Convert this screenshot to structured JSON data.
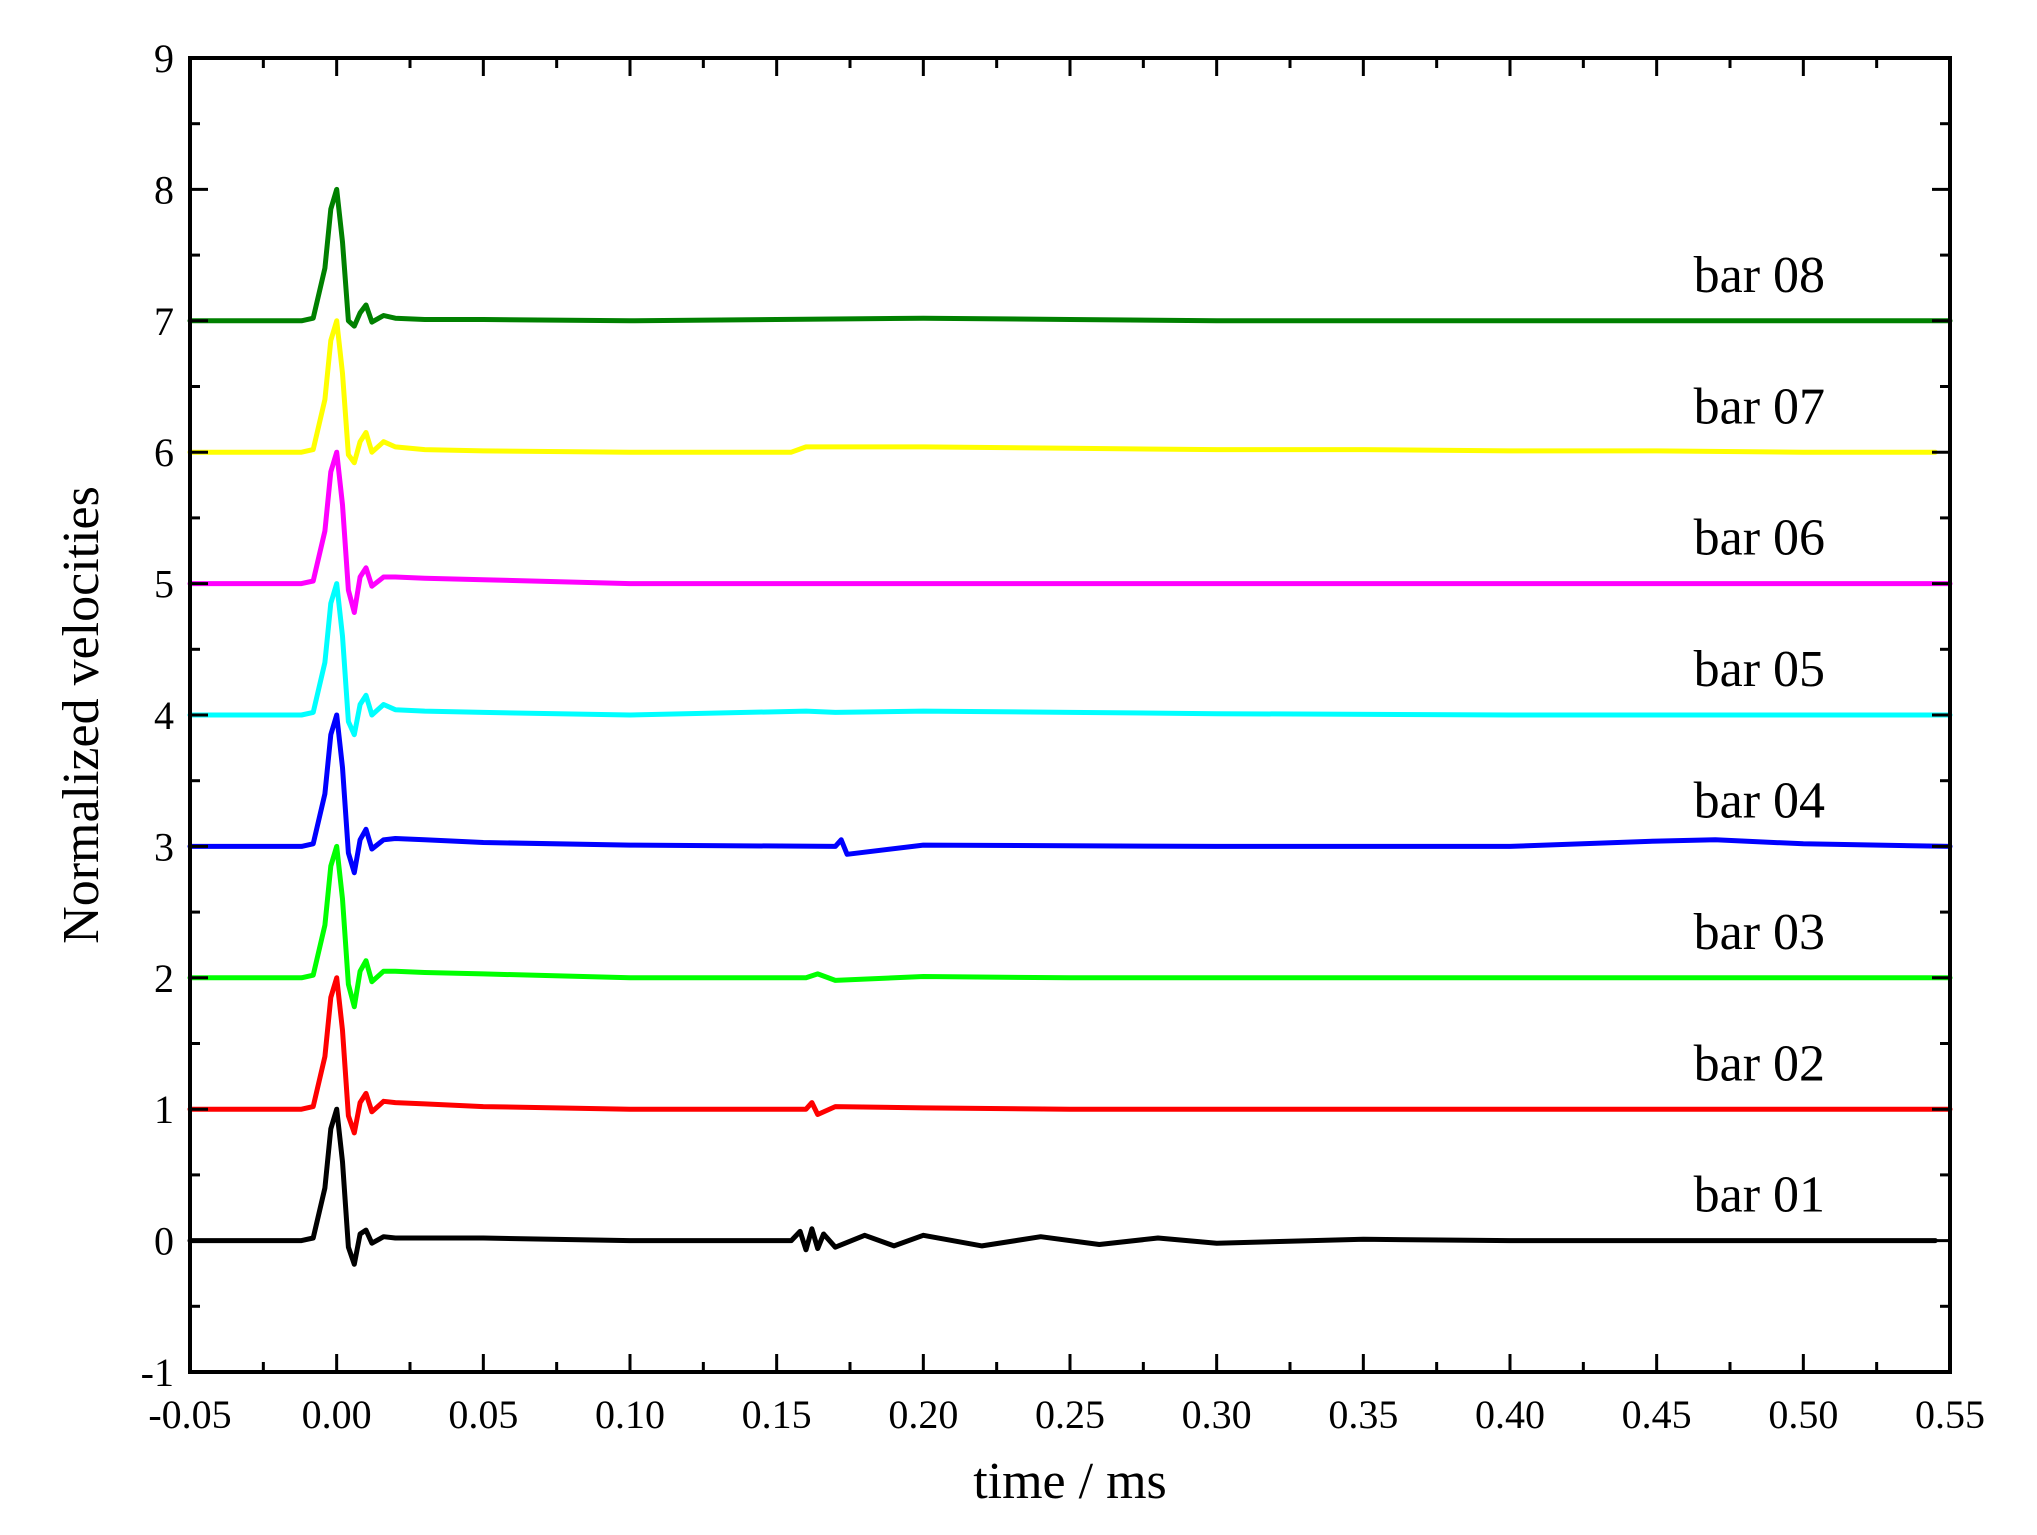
{
  "chart_data": {
    "type": "line",
    "title": "",
    "xlabel": "time / ms",
    "ylabel": "Normalized velocities",
    "xlim": [
      -0.05,
      0.55
    ],
    "ylim": [
      -1,
      9
    ],
    "x_ticks": [
      "-0.05",
      "0.00",
      "0.05",
      "0.10",
      "0.15",
      "0.20",
      "0.25",
      "0.30",
      "0.35",
      "0.40",
      "0.45",
      "0.50",
      "0.55"
    ],
    "x_tick_values": [
      -0.05,
      0.0,
      0.05,
      0.1,
      0.15,
      0.2,
      0.25,
      0.3,
      0.35,
      0.4,
      0.45,
      0.5,
      0.55
    ],
    "y_ticks": [
      "-1",
      "0",
      "1",
      "2",
      "3",
      "4",
      "5",
      "6",
      "7",
      "8",
      "9"
    ],
    "y_tick_values": [
      -1,
      0,
      1,
      2,
      3,
      4,
      5,
      6,
      7,
      8,
      9
    ],
    "grid": false,
    "legend": "inline labels at right, above each trace",
    "series": [
      {
        "name": "bar 01",
        "color": "#000000",
        "offset": 0,
        "x": [
          -0.05,
          -0.012,
          -0.008,
          -0.004,
          -0.002,
          0.0,
          0.002,
          0.004,
          0.006,
          0.008,
          0.01,
          0.012,
          0.016,
          0.02,
          0.03,
          0.05,
          0.1,
          0.155,
          0.158,
          0.16,
          0.162,
          0.164,
          0.166,
          0.17,
          0.18,
          0.19,
          0.2,
          0.22,
          0.24,
          0.26,
          0.28,
          0.3,
          0.35,
          0.4,
          0.45,
          0.5,
          0.545
        ],
        "y": [
          0.0,
          0.0,
          0.02,
          0.4,
          0.85,
          1.0,
          0.6,
          -0.05,
          -0.18,
          0.05,
          0.08,
          -0.02,
          0.03,
          0.02,
          0.02,
          0.02,
          0.0,
          0.0,
          0.07,
          -0.07,
          0.09,
          -0.06,
          0.05,
          -0.05,
          0.04,
          -0.04,
          0.04,
          -0.04,
          0.03,
          -0.03,
          0.02,
          -0.02,
          0.01,
          0.0,
          0.0,
          0.0,
          0.0
        ]
      },
      {
        "name": "bar 02",
        "color": "#ff0000",
        "offset": 1,
        "x": [
          -0.05,
          -0.012,
          -0.008,
          -0.004,
          -0.002,
          0.0,
          0.002,
          0.004,
          0.006,
          0.008,
          0.01,
          0.012,
          0.016,
          0.02,
          0.03,
          0.05,
          0.1,
          0.16,
          0.162,
          0.164,
          0.17,
          0.2,
          0.25,
          0.3,
          0.4,
          0.5,
          0.55
        ],
        "y": [
          1.0,
          1.0,
          1.02,
          1.4,
          1.85,
          2.0,
          1.6,
          0.95,
          0.82,
          1.05,
          1.12,
          0.98,
          1.06,
          1.05,
          1.04,
          1.02,
          1.0,
          1.0,
          1.05,
          0.96,
          1.02,
          1.01,
          1.0,
          1.0,
          1.0,
          1.0,
          1.0
        ]
      },
      {
        "name": "bar 03",
        "color": "#00ff00",
        "offset": 2,
        "x": [
          -0.05,
          -0.012,
          -0.008,
          -0.004,
          -0.002,
          0.0,
          0.002,
          0.004,
          0.006,
          0.008,
          0.01,
          0.012,
          0.016,
          0.02,
          0.03,
          0.05,
          0.1,
          0.16,
          0.164,
          0.17,
          0.2,
          0.25,
          0.3,
          0.4,
          0.5,
          0.55
        ],
        "y": [
          2.0,
          2.0,
          2.02,
          2.4,
          2.85,
          3.0,
          2.6,
          1.95,
          1.78,
          2.05,
          2.13,
          1.97,
          2.05,
          2.05,
          2.04,
          2.03,
          2.0,
          2.0,
          2.03,
          1.98,
          2.01,
          2.0,
          2.0,
          2.0,
          2.0,
          2.0
        ]
      },
      {
        "name": "bar 04",
        "color": "#0000ff",
        "offset": 3,
        "x": [
          -0.05,
          -0.012,
          -0.008,
          -0.004,
          -0.002,
          0.0,
          0.002,
          0.004,
          0.006,
          0.008,
          0.01,
          0.012,
          0.016,
          0.02,
          0.03,
          0.05,
          0.1,
          0.17,
          0.172,
          0.174,
          0.2,
          0.3,
          0.4,
          0.45,
          0.47,
          0.5,
          0.55
        ],
        "y": [
          3.0,
          3.0,
          3.02,
          3.4,
          3.85,
          4.0,
          3.6,
          2.95,
          2.8,
          3.05,
          3.13,
          2.98,
          3.05,
          3.06,
          3.05,
          3.03,
          3.01,
          3.0,
          3.05,
          2.94,
          3.01,
          3.0,
          3.0,
          3.04,
          3.05,
          3.02,
          3.0
        ]
      },
      {
        "name": "bar 05",
        "color": "#00ffff",
        "offset": 4,
        "x": [
          -0.05,
          -0.012,
          -0.008,
          -0.004,
          -0.002,
          0.0,
          0.002,
          0.004,
          0.006,
          0.008,
          0.01,
          0.012,
          0.016,
          0.02,
          0.03,
          0.05,
          0.1,
          0.16,
          0.17,
          0.2,
          0.25,
          0.3,
          0.4,
          0.5,
          0.55
        ],
        "y": [
          4.0,
          4.0,
          4.02,
          4.4,
          4.85,
          5.0,
          4.6,
          3.95,
          3.85,
          4.08,
          4.15,
          4.0,
          4.08,
          4.04,
          4.03,
          4.02,
          4.0,
          4.03,
          4.02,
          4.03,
          4.02,
          4.01,
          4.0,
          4.0,
          4.0
        ]
      },
      {
        "name": "bar 06",
        "color": "#ff00ff",
        "offset": 5,
        "x": [
          -0.05,
          -0.012,
          -0.008,
          -0.004,
          -0.002,
          0.0,
          0.002,
          0.004,
          0.006,
          0.008,
          0.01,
          0.012,
          0.016,
          0.02,
          0.03,
          0.05,
          0.1,
          0.16,
          0.2,
          0.3,
          0.4,
          0.5,
          0.55
        ],
        "y": [
          5.0,
          5.0,
          5.02,
          5.4,
          5.85,
          6.0,
          5.6,
          4.95,
          4.78,
          5.05,
          5.12,
          4.98,
          5.05,
          5.05,
          5.04,
          5.03,
          5.0,
          5.0,
          5.0,
          5.0,
          5.0,
          5.0,
          5.0
        ]
      },
      {
        "name": "bar 07",
        "color": "#ffff00",
        "offset": 6,
        "x": [
          -0.05,
          -0.012,
          -0.008,
          -0.004,
          -0.002,
          0.0,
          0.002,
          0.004,
          0.006,
          0.008,
          0.01,
          0.012,
          0.016,
          0.02,
          0.03,
          0.05,
          0.1,
          0.155,
          0.16,
          0.18,
          0.2,
          0.25,
          0.3,
          0.35,
          0.4,
          0.45,
          0.5,
          0.545
        ],
        "y": [
          6.0,
          6.0,
          6.02,
          6.4,
          6.85,
          7.0,
          6.6,
          5.98,
          5.92,
          6.08,
          6.15,
          6.0,
          6.08,
          6.04,
          6.02,
          6.01,
          6.0,
          6.0,
          6.04,
          6.04,
          6.04,
          6.03,
          6.02,
          6.02,
          6.01,
          6.01,
          6.0,
          6.0
        ]
      },
      {
        "name": "bar 08",
        "color": "#008000",
        "offset": 7,
        "x": [
          -0.05,
          -0.012,
          -0.008,
          -0.004,
          -0.002,
          0.0,
          0.002,
          0.004,
          0.006,
          0.008,
          0.01,
          0.012,
          0.016,
          0.02,
          0.03,
          0.05,
          0.1,
          0.2,
          0.25,
          0.3,
          0.4,
          0.5,
          0.55
        ],
        "y": [
          7.0,
          7.0,
          7.02,
          7.4,
          7.85,
          8.0,
          7.6,
          7.0,
          6.96,
          7.06,
          7.12,
          6.99,
          7.04,
          7.02,
          7.01,
          7.01,
          7.0,
          7.02,
          7.01,
          7.0,
          7.0,
          7.0,
          7.0
        ]
      }
    ]
  }
}
